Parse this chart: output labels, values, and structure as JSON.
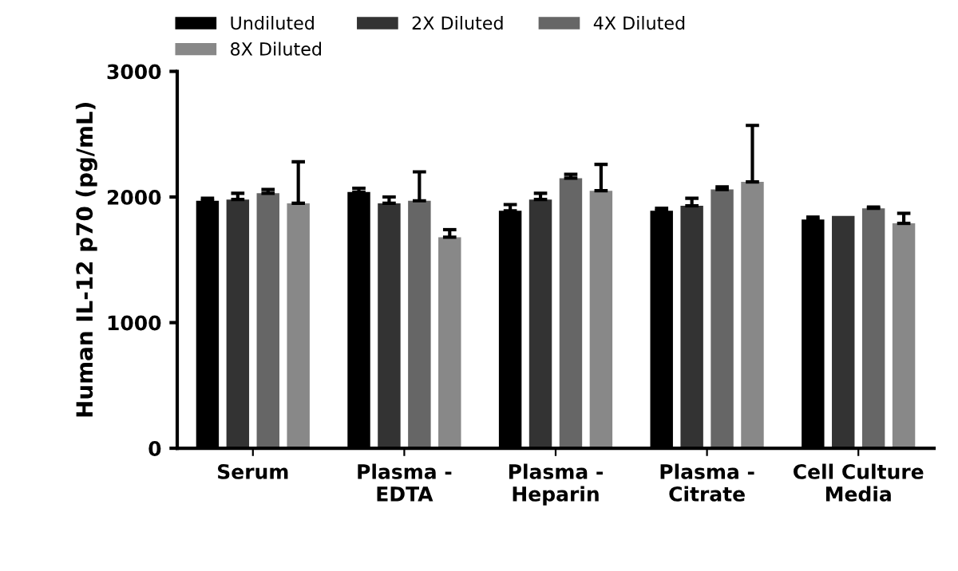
{
  "chart_data": {
    "type": "bar",
    "ylabel": "Human IL-12 p70 (pg/mL)",
    "categories": [
      "Serum",
      "Plasma -\nEDTA",
      "Plasma -\nHeparin",
      "Plasma -\nCitrate",
      "Cell Culture\nMedia"
    ],
    "series": [
      {
        "name": "Undiluted",
        "color": "#000000",
        "values": [
          1970,
          2040,
          1890,
          1890,
          1820
        ],
        "errors": [
          [
            1970,
            1990
          ],
          [
            2040,
            2070
          ],
          [
            1890,
            1940
          ],
          [
            1890,
            1910
          ],
          [
            1820,
            1840
          ]
        ]
      },
      {
        "name": "2X Diluted",
        "color": "#333333",
        "values": [
          1980,
          1950,
          1980,
          1930,
          1850
        ],
        "errors": [
          [
            1980,
            2030
          ],
          [
            1950,
            2000
          ],
          [
            1980,
            2030
          ],
          [
            1930,
            1990
          ],
          null
        ]
      },
      {
        "name": "4X Diluted",
        "color": "#666666",
        "values": [
          2030,
          1970,
          2150,
          2060,
          1910
        ],
        "errors": [
          [
            2030,
            2060
          ],
          [
            1970,
            2200
          ],
          [
            2150,
            2180
          ],
          [
            2060,
            2080
          ],
          [
            1910,
            1920
          ]
        ]
      },
      {
        "name": "8X Diluted",
        "color": "#888888",
        "values": [
          1950,
          1680,
          2050,
          2120,
          1790
        ],
        "errors": [
          [
            1950,
            2280
          ],
          [
            1680,
            1740
          ],
          [
            2050,
            2260
          ],
          [
            2120,
            2570
          ],
          [
            1790,
            1870
          ]
        ]
      }
    ],
    "ylim": [
      0,
      3000
    ],
    "yticks": [
      0,
      1000,
      2000,
      3000
    ],
    "grid": false,
    "legend": "top"
  }
}
